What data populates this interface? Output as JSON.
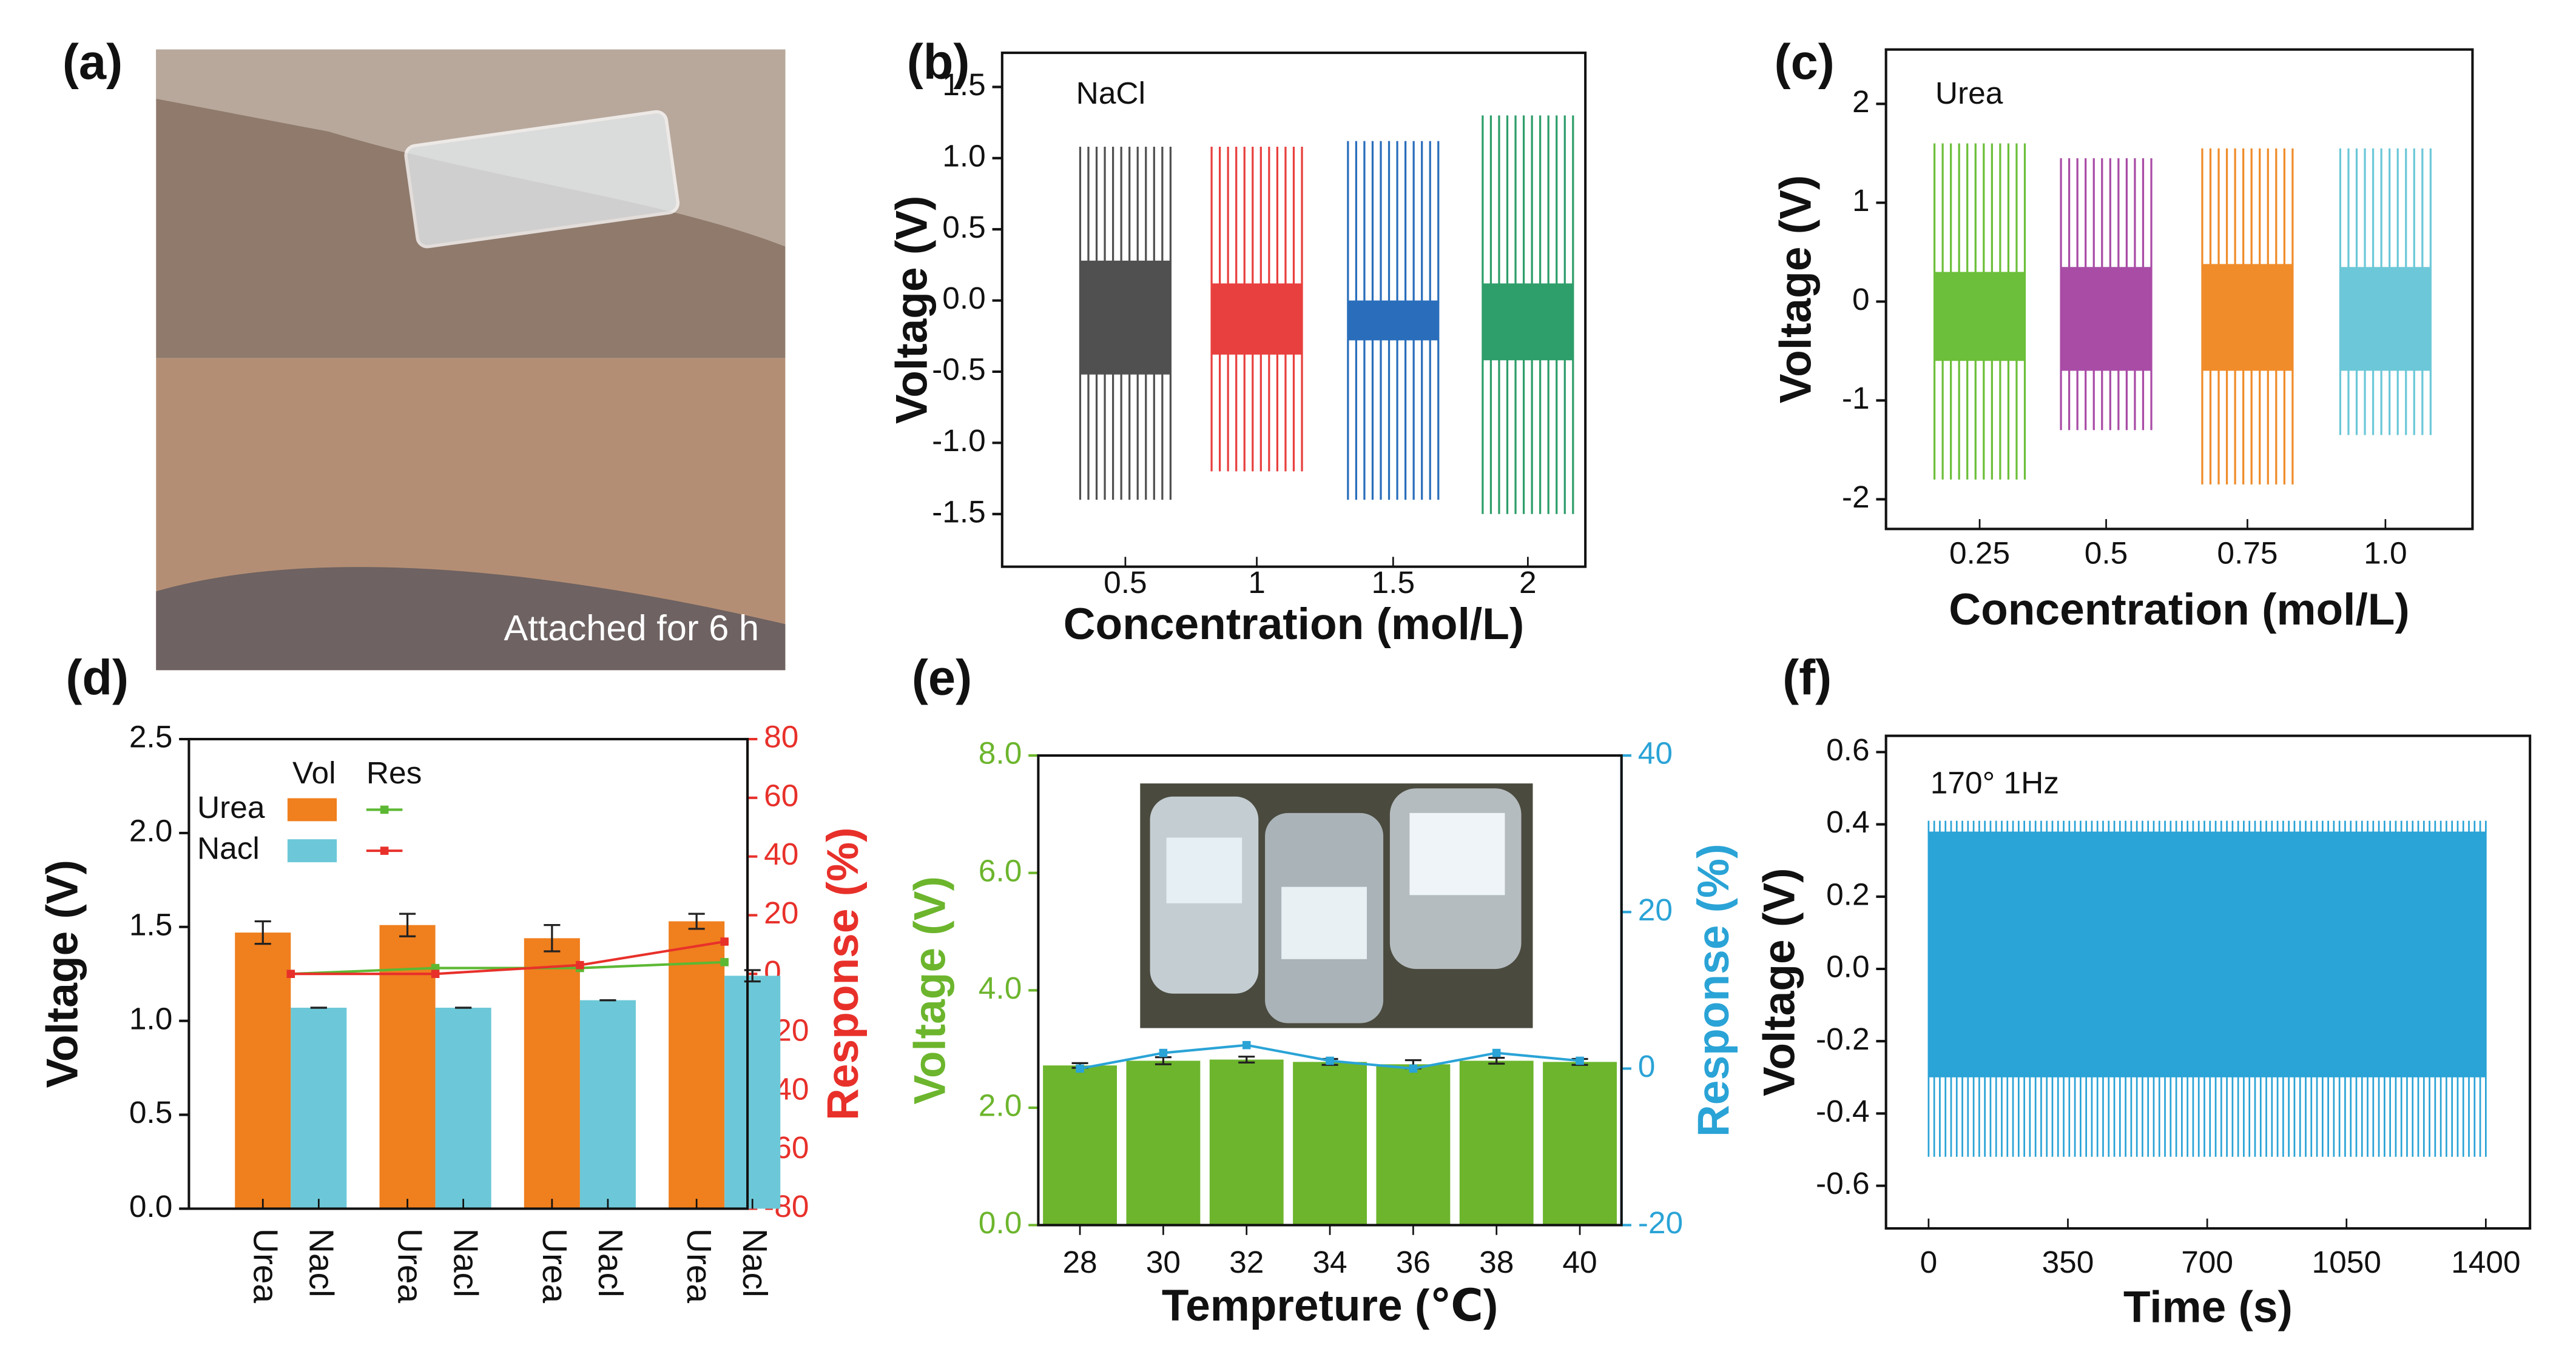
{
  "photo": {
    "label": "(a)",
    "caption": "Attached for 6 h"
  },
  "chart_data": [
    {
      "type": "grouped_signal",
      "panel_label": "(b)",
      "annotation": "NaCl",
      "xlabel": "Concentration (mol/L)",
      "ylabel": "Voltage (V)",
      "categories": [
        "0.5",
        "1",
        "1.5",
        "2"
      ],
      "colors": [
        "#505050",
        "#e8403e",
        "#2a6ebb",
        "#2e9e6a"
      ],
      "band_high": [
        0.28,
        0.12,
        0,
        0.12
      ],
      "band_low": [
        -0.52,
        -0.38,
        -0.28,
        -0.42
      ],
      "spike_high": [
        1.08,
        1.08,
        1.12,
        1.3
      ],
      "spike_low": [
        -1.4,
        -1.2,
        -1.4,
        -1.5
      ],
      "ylim": [
        -1.87,
        1.74
      ],
      "yticks": [
        {
          "value": -1.5,
          "label": "-1.5"
        },
        {
          "value": -1,
          "label": "-1.0"
        },
        -0.5,
        {
          "value": 0,
          "label": "0.0"
        },
        0.5,
        {
          "value": 1,
          "label": "1.0"
        },
        1.5
      ]
    },
    {
      "type": "grouped_signal",
      "panel_label": "(c)",
      "annotation": "Urea",
      "xlabel": "Concentration (mol/L)",
      "ylabel": "Voltage (V)",
      "categories": [
        "0.25",
        "0.5",
        "0.75",
        "1.0"
      ],
      "colors": [
        "#6cbf3a",
        "#a94ca6",
        "#f08c2a",
        "#6cc8d8"
      ],
      "band_high": [
        0.3,
        0.35,
        0.38,
        0.35
      ],
      "band_low": [
        -0.6,
        -0.7,
        -0.7,
        -0.7
      ],
      "spike_high": [
        1.6,
        1.45,
        1.55,
        1.55
      ],
      "spike_low": [
        -1.8,
        -1.3,
        -1.85,
        -1.35
      ],
      "ylim": [
        -2.3,
        2.55
      ],
      "yticks": [
        -2,
        -1,
        0,
        1,
        2
      ]
    },
    {
      "type": "bar",
      "panel_label": "(d)",
      "ylabel": "Voltage (V)",
      "y2label": "Response (%)",
      "y2_color": "#e8302a",
      "x_labels": [
        "Urea",
        "Nacl",
        "Urea",
        "Nacl",
        "Urea",
        "Nacl",
        "Urea",
        "Nacl"
      ],
      "legend_headers": [
        "Vol",
        "Res"
      ],
      "series": [
        {
          "name": "Urea",
          "color": "#f07f1e",
          "values": [
            1.47,
            1.51,
            1.44,
            1.53
          ],
          "errors": [
            0.06,
            0.06,
            0.07,
            0.04
          ]
        },
        {
          "name": "Nacl",
          "color": "#6cc8d8",
          "values": [
            1.07,
            1.07,
            1.11,
            1.24
          ],
          "errors": [
            0,
            0,
            0,
            0.03
          ]
        },
        {
          "color": "#5cb833",
          "axis": "y2",
          "values": [
            0,
            2,
            2,
            4
          ]
        },
        {
          "color": "#e8302a",
          "axis": "y2",
          "values": [
            0,
            0,
            3,
            11
          ]
        }
      ],
      "ylim": [
        0,
        2.5
      ],
      "yticks": [
        {
          "value": 0,
          "label": "0.0"
        },
        0.5,
        {
          "value": 1,
          "label": "1.0"
        },
        1.5,
        {
          "value": 2,
          "label": "2.0"
        },
        2.5
      ],
      "y2lim": [
        -80,
        80
      ],
      "y2ticks": [
        -80,
        -60,
        -40,
        -20,
        0,
        20,
        40,
        60,
        80
      ]
    },
    {
      "type": "bar",
      "panel_label": "(e)",
      "xlabel": "Tempreture (℃)",
      "ylabel": "Voltage (V)",
      "y2label": "Response (%)",
      "y_color": "#6cb52d",
      "y2_color": "#2aa3d6",
      "categories": [
        "28",
        "30",
        "32",
        "34",
        "36",
        "38",
        "40"
      ],
      "series": [
        {
          "color": "#6cb52d",
          "values": [
            2.72,
            2.8,
            2.82,
            2.78,
            2.74,
            2.8,
            2.78
          ],
          "errors": [
            0.04,
            0.06,
            0.05,
            0.05,
            0.07,
            0.05,
            0.05
          ]
        },
        {
          "color": "#2aa3d6",
          "axis": "y2",
          "values": [
            0,
            2,
            3,
            1,
            0,
            2,
            1
          ]
        }
      ],
      "ylim": [
        0,
        8
      ],
      "yticks": [
        {
          "value": 0,
          "label": "0.0"
        },
        {
          "value": 2,
          "label": "2.0"
        },
        {
          "value": 4,
          "label": "4.0"
        },
        {
          "value": 6,
          "label": "6.0"
        },
        {
          "value": 8,
          "label": "8.0"
        }
      ],
      "y2lim": [
        -20,
        40
      ],
      "y2ticks": [
        -20,
        0,
        20,
        40
      ]
    },
    {
      "type": "signal",
      "panel_label": "(f)",
      "annotation": "170° 1Hz",
      "xlabel": "Time (s)",
      "ylabel": "Voltage (V)",
      "color": "#2aa3d6",
      "signal_x": [
        0,
        1400
      ],
      "band_high": 0.38,
      "band_low": -0.3,
      "spike_high": 0.41,
      "spike_low": -0.52,
      "xlim": [
        -107,
        1511
      ],
      "xticks": [
        0,
        350,
        700,
        1050,
        1400
      ],
      "ylim": [
        -0.718,
        0.645
      ],
      "yticks": [
        -0.6,
        -0.4,
        -0.2,
        {
          "value": 0,
          "label": "0.0"
        },
        0.2,
        0.4,
        0.6
      ]
    }
  ]
}
